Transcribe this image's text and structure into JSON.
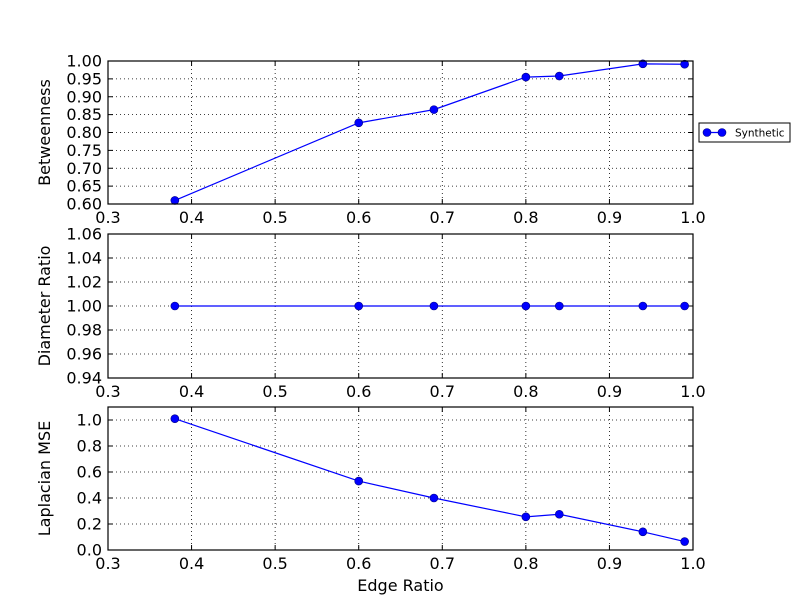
{
  "chart_data": [
    {
      "type": "line",
      "ylabel": "Betweenness",
      "xlim": [
        0.3,
        1.0
      ],
      "ylim": [
        0.6,
        1.0
      ],
      "xticks": [
        "0.3",
        "0.4",
        "0.5",
        "0.6",
        "0.7",
        "0.8",
        "0.9",
        "1.0"
      ],
      "yticks": [
        "0.60",
        "0.65",
        "0.70",
        "0.75",
        "0.80",
        "0.85",
        "0.90",
        "0.95",
        "1.00"
      ],
      "grid": true,
      "legend": "outside-right",
      "series": [
        {
          "name": "Synthetic",
          "x": [
            0.38,
            0.6,
            0.69,
            0.8,
            0.84,
            0.94,
            0.99
          ],
          "y": [
            0.61,
            0.827,
            0.864,
            0.955,
            0.958,
            0.992,
            0.991
          ]
        }
      ]
    },
    {
      "type": "line",
      "ylabel": "Diameter Ratio",
      "xlim": [
        0.3,
        1.0
      ],
      "ylim": [
        0.94,
        1.06
      ],
      "xticks": [
        "0.3",
        "0.4",
        "0.5",
        "0.6",
        "0.7",
        "0.8",
        "0.9",
        "1.0"
      ],
      "yticks": [
        "0.94",
        "0.96",
        "0.98",
        "1.00",
        "1.02",
        "1.04",
        "1.06"
      ],
      "grid": true,
      "series": [
        {
          "x": [
            0.38,
            0.6,
            0.69,
            0.8,
            0.84,
            0.94,
            0.99
          ],
          "y": [
            1.0,
            1.0,
            1.0,
            1.0,
            1.0,
            1.0,
            1.0
          ]
        }
      ]
    },
    {
      "type": "line",
      "xlabel": "Edge Ratio",
      "ylabel": "Laplacian MSE",
      "xlim": [
        0.3,
        1.0
      ],
      "ylim": [
        0.0,
        1.1
      ],
      "xticks": [
        "0.3",
        "0.4",
        "0.5",
        "0.6",
        "0.7",
        "0.8",
        "0.9",
        "1.0"
      ],
      "yticks": [
        "0.0",
        "0.2",
        "0.4",
        "0.6",
        "0.8",
        "1.0"
      ],
      "grid": true,
      "series": [
        {
          "x": [
            0.38,
            0.6,
            0.69,
            0.8,
            0.84,
            0.94,
            0.99
          ],
          "y": [
            1.01,
            0.53,
            0.4,
            0.255,
            0.275,
            0.14,
            0.065
          ]
        }
      ]
    }
  ]
}
